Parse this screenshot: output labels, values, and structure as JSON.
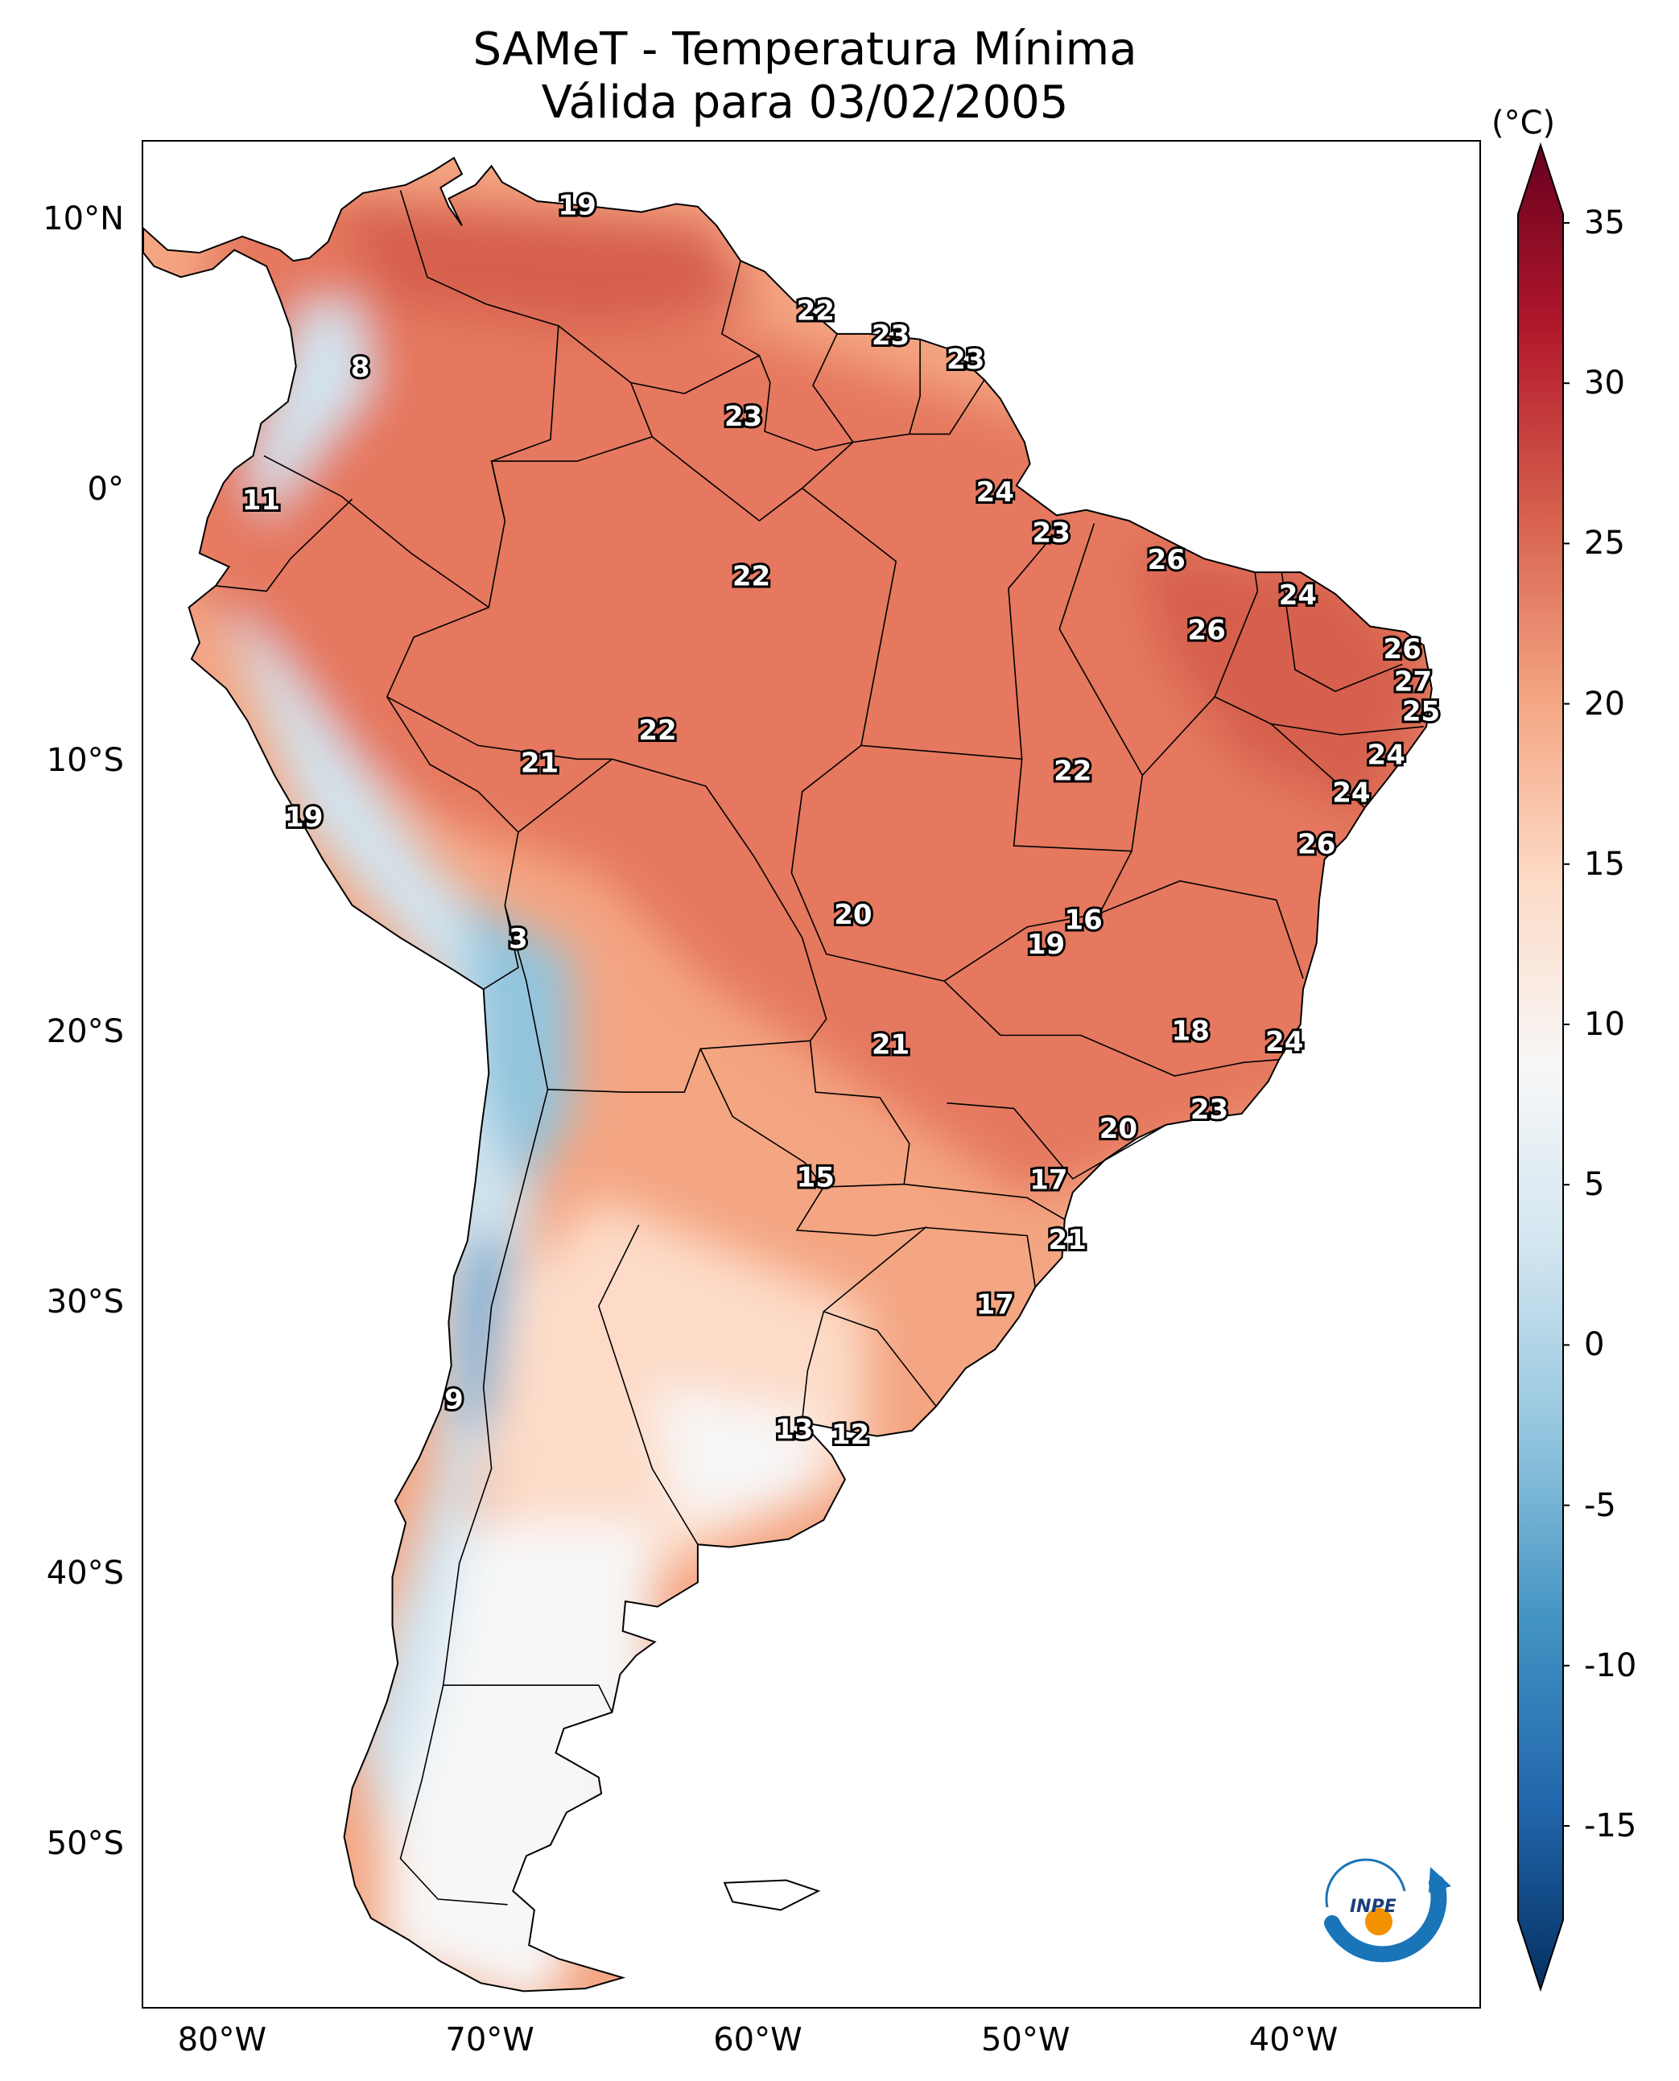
{
  "title": {
    "line1": "SAMeT - Temperatura Mínima",
    "line2": "Válida para 03/02/2005"
  },
  "colorbar": {
    "unit": "(°C)",
    "ticks": [
      "35",
      "30",
      "25",
      "20",
      "15",
      "10",
      "5",
      "0",
      "-5",
      "-10",
      "-15"
    ],
    "tick_values": [
      35,
      30,
      25,
      20,
      15,
      10,
      5,
      0,
      -5,
      -10,
      -15
    ],
    "range": [
      -15,
      35
    ],
    "colors": [
      "#053061",
      "#2166ac",
      "#4393c3",
      "#92c5de",
      "#d1e5f0",
      "#f7f7f7",
      "#fddbc7",
      "#f4a582",
      "#d6604d",
      "#b2182b",
      "#67001f"
    ]
  },
  "axes": {
    "lat_labels": [
      "10°N",
      "0°",
      "10°S",
      "20°S",
      "30°S",
      "40°S",
      "50°S"
    ],
    "lat_values": [
      10,
      0,
      -10,
      -20,
      -30,
      -40,
      -50
    ],
    "lon_labels": [
      "80°W",
      "70°W",
      "60°W",
      "50°W",
      "40°W"
    ],
    "lon_values": [
      -80,
      -70,
      -60,
      -50,
      -40
    ],
    "lon_range": [
      -83,
      -33
    ],
    "lat_range": [
      -56,
      13
    ]
  },
  "map_colors": {
    "hot": "#d6604d",
    "warm": "#e5785f",
    "mild": "#f4a582",
    "light": "#fddbc7",
    "neutral": "#f7f7f7",
    "cool": "#d1e5f0",
    "cold": "#92c5de",
    "colder": "#4393c3",
    "border": "#000000"
  },
  "station_values": [
    {
      "text": "19",
      "lon": -66.8,
      "lat": 10.6
    },
    {
      "text": "22",
      "lon": -57.9,
      "lat": 6.7
    },
    {
      "text": "23",
      "lon": -55.1,
      "lat": 5.8
    },
    {
      "text": "23",
      "lon": -52.3,
      "lat": 4.9
    },
    {
      "text": "8",
      "lon": -74.9,
      "lat": 4.6
    },
    {
      "text": "23",
      "lon": -60.6,
      "lat": 2.8
    },
    {
      "text": "24",
      "lon": -51.2,
      "lat": 0.0
    },
    {
      "text": "11",
      "lon": -78.6,
      "lat": -0.3
    },
    {
      "text": "23",
      "lon": -49.1,
      "lat": -1.5
    },
    {
      "text": "26",
      "lon": -44.8,
      "lat": -2.5
    },
    {
      "text": "22",
      "lon": -60.3,
      "lat": -3.1
    },
    {
      "text": "24",
      "lon": -39.9,
      "lat": -3.8
    },
    {
      "text": "26",
      "lon": -43.3,
      "lat": -5.1
    },
    {
      "text": "26",
      "lon": -36.0,
      "lat": -5.8
    },
    {
      "text": "27",
      "lon": -35.6,
      "lat": -7.0
    },
    {
      "text": "25",
      "lon": -35.3,
      "lat": -8.1
    },
    {
      "text": "22",
      "lon": -63.8,
      "lat": -8.8
    },
    {
      "text": "24",
      "lon": -36.6,
      "lat": -9.7
    },
    {
      "text": "21",
      "lon": -68.2,
      "lat": -10.0
    },
    {
      "text": "22",
      "lon": -48.3,
      "lat": -10.3
    },
    {
      "text": "24",
      "lon": -37.9,
      "lat": -11.1
    },
    {
      "text": "19",
      "lon": -77.0,
      "lat": -12.0
    },
    {
      "text": "26",
      "lon": -39.2,
      "lat": -13.0
    },
    {
      "text": "20",
      "lon": -56.5,
      "lat": -15.6
    },
    {
      "text": "16",
      "lon": -47.9,
      "lat": -15.8
    },
    {
      "text": "3",
      "lon": -69.0,
      "lat": -16.5
    },
    {
      "text": "19",
      "lon": -49.3,
      "lat": -16.7
    },
    {
      "text": "18",
      "lon": -43.9,
      "lat": -19.9
    },
    {
      "text": "24",
      "lon": -40.4,
      "lat": -20.3
    },
    {
      "text": "21",
      "lon": -55.1,
      "lat": -20.4
    },
    {
      "text": "23",
      "lon": -43.2,
      "lat": -22.8
    },
    {
      "text": "20",
      "lon": -46.6,
      "lat": -23.5
    },
    {
      "text": "15",
      "lon": -57.9,
      "lat": -25.3
    },
    {
      "text": "17",
      "lon": -49.2,
      "lat": -25.4
    },
    {
      "text": "21",
      "lon": -48.5,
      "lat": -27.6
    },
    {
      "text": "17",
      "lon": -51.2,
      "lat": -30.0
    },
    {
      "text": "9",
      "lon": -71.4,
      "lat": -33.5
    },
    {
      "text": "13",
      "lon": -58.7,
      "lat": -34.6
    },
    {
      "text": "12",
      "lon": -56.6,
      "lat": -34.8
    }
  ]
}
